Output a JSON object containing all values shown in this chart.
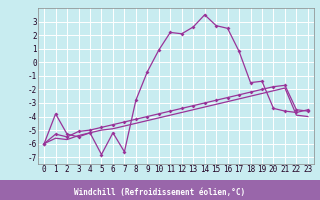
{
  "background_color": "#c8ecf0",
  "xlabel_bg_color": "#9966aa",
  "grid_color": "#ffffff",
  "line_color": "#993399",
  "x": [
    0,
    1,
    2,
    3,
    4,
    5,
    6,
    7,
    8,
    9,
    10,
    11,
    12,
    13,
    14,
    15,
    16,
    17,
    18,
    19,
    20,
    21,
    22,
    23
  ],
  "line1_y": [
    -6.0,
    -3.8,
    -5.3,
    -5.5,
    -5.2,
    -6.8,
    -5.2,
    -6.6,
    -2.8,
    -0.7,
    0.9,
    2.2,
    2.1,
    2.6,
    3.5,
    2.7,
    2.5,
    0.8,
    -1.5,
    -1.4,
    -3.4,
    -3.6,
    -3.7,
    -3.5
  ],
  "line2_y": [
    -6.0,
    -5.3,
    -5.5,
    -5.1,
    -5.0,
    -4.8,
    -4.6,
    -4.4,
    -4.2,
    -4.0,
    -3.8,
    -3.6,
    -3.4,
    -3.2,
    -3.0,
    -2.8,
    -2.6,
    -2.4,
    -2.2,
    -2.0,
    -1.8,
    -1.7,
    -3.5,
    -3.6
  ],
  "line3_y": [
    -6.0,
    -5.6,
    -5.7,
    -5.4,
    -5.2,
    -5.0,
    -4.9,
    -4.7,
    -4.5,
    -4.3,
    -4.1,
    -3.9,
    -3.7,
    -3.5,
    -3.3,
    -3.1,
    -2.9,
    -2.7,
    -2.5,
    -2.3,
    -2.1,
    -1.9,
    -3.9,
    -4.0
  ],
  "xlabel": "Windchill (Refroidissement éolien,°C)",
  "ylim": [
    -7.5,
    4.0
  ],
  "xlim": [
    -0.5,
    23.5
  ],
  "yticks": [
    -7,
    -6,
    -5,
    -4,
    -3,
    -2,
    -1,
    0,
    1,
    2,
    3
  ],
  "xticks": [
    0,
    1,
    2,
    3,
    4,
    5,
    6,
    7,
    8,
    9,
    10,
    11,
    12,
    13,
    14,
    15,
    16,
    17,
    18,
    19,
    20,
    21,
    22,
    23
  ],
  "tick_fontsize": 5.5,
  "xlabel_fontsize": 5.5
}
